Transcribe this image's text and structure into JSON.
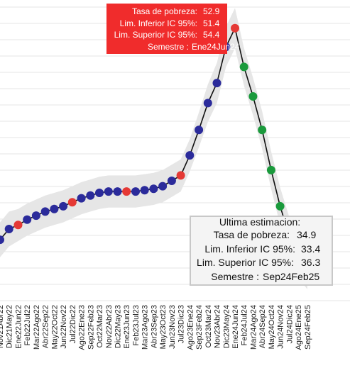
{
  "chart_data": {
    "type": "line",
    "categories": [
      "Nov21Abr22",
      "Dic21May22",
      "Ene22Jun22",
      "Feb22Jul22",
      "Mar22Ago22",
      "Abr22Sep22",
      "May22Oct22",
      "Jun22Nov22",
      "Jul22Dic22",
      "Ago22Ene23",
      "Sep22Feb23",
      "Oct22Mar23",
      "Nov22Abr23",
      "Dic22May23",
      "Ene23Jun23",
      "Feb23Jul23",
      "Mar23Ago23",
      "Abr23Sep23",
      "May23Oct23",
      "Jun23Nov23",
      "Jul23Dic23",
      "Ago23Ene24",
      "Sep23Feb24",
      "Oct23Mar24",
      "Nov23Abr24",
      "Dic23May24",
      "Ene24Jun24",
      "Feb24Jul24",
      "Mar24Ago24",
      "Abr24Sep24",
      "May24Oct24",
      "Jun24Nov24",
      "Jul24Dic24",
      "Ago24Ene25",
      "Sep24Feb25"
    ],
    "series": [
      {
        "values": [
          37.1,
          37.9,
          38.2,
          38.6,
          38.9,
          39.2,
          39.4,
          39.6,
          39.9,
          40.2,
          40.4,
          40.6,
          40.7,
          40.7,
          40.7,
          40.7,
          40.8,
          40.9,
          41.1,
          41.5,
          41.9,
          43.4,
          45.3,
          47.3,
          48.8,
          51.5,
          52.9,
          50.0,
          47.8,
          45.3,
          42.3,
          39.6,
          37.4,
          35.8,
          34.9
        ],
        "lower": [
          35.8,
          36.6,
          37.0,
          37.4,
          37.7,
          38.0,
          38.2,
          38.4,
          38.7,
          39.0,
          39.2,
          39.4,
          39.5,
          39.5,
          39.5,
          39.5,
          39.6,
          39.7,
          39.9,
          40.3,
          40.7,
          42.2,
          44.0,
          45.9,
          47.3,
          50.0,
          51.4,
          48.6,
          46.4,
          43.9,
          40.9,
          38.2,
          36.0,
          34.3,
          33.4
        ],
        "upper": [
          38.4,
          39.2,
          39.4,
          39.8,
          40.1,
          40.4,
          40.6,
          40.8,
          41.1,
          41.4,
          41.6,
          41.8,
          41.9,
          41.9,
          41.9,
          41.9,
          42.0,
          42.1,
          42.3,
          42.7,
          43.1,
          44.6,
          46.6,
          48.7,
          50.3,
          53.0,
          54.4,
          51.4,
          49.2,
          46.7,
          43.7,
          41.0,
          38.8,
          37.3,
          36.3
        ],
        "colors": [
          "#2b2b9b",
          "#2b2b9b",
          "#e53935",
          "#2b2b9b",
          "#2b2b9b",
          "#2b2b9b",
          "#2b2b9b",
          "#2b2b9b",
          "#e53935",
          "#2b2b9b",
          "#2b2b9b",
          "#2b2b9b",
          "#2b2b9b",
          "#2b2b9b",
          "#e53935",
          "#2b2b9b",
          "#2b2b9b",
          "#2b2b9b",
          "#2b2b9b",
          "#2b2b9b",
          "#e53935",
          "#2b2b9b",
          "#2b2b9b",
          "#2b2b9b",
          "#2b2b9b",
          "#2b2b9b",
          "#e53935",
          "#1a9a3c",
          "#1a9a3c",
          "#1a9a3c",
          "#1a9a3c",
          "#1a9a3c",
          "#1a9a3c",
          "#1a9a3c",
          "#1a9a3c"
        ]
      }
    ],
    "ylim": [
      32.5,
      55
    ],
    "grid": true,
    "band_color": "#e6e6e6",
    "line_color": "#111111"
  },
  "tooltip_highlight": {
    "color": "#f02c2c",
    "lines": [
      {
        "label": "Tasa de pobreza:",
        "value": "52.9"
      },
      {
        "label": "Lim. Inferior IC 95%:",
        "value": "51.4"
      },
      {
        "label": "Lim. Superior IC 95%:",
        "value": "54.4"
      },
      {
        "label": "Semestre :",
        "value": "Ene24Jun24"
      }
    ]
  },
  "tooltip_last": {
    "title": "Ultima estimacion:",
    "lines": [
      {
        "label": "Tasa de pobreza:",
        "value": "34.9"
      },
      {
        "label": "Lim. Inferior IC 95%:",
        "value": "33.4"
      },
      {
        "label": "Lim. Superior IC 95%:",
        "value": "36.3"
      },
      {
        "label": "Semestre :",
        "value": "Sep24Feb25"
      }
    ]
  }
}
